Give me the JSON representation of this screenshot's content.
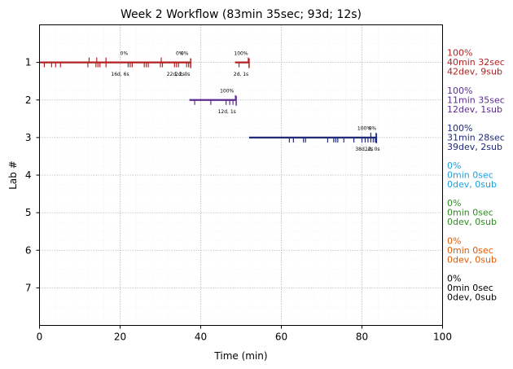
{
  "chart_data": {
    "type": "timeline",
    "title": "Week 2 Workflow (83min 35sec; 93d; 12s)",
    "xlabel": "Time (min)",
    "ylabel": "Lab #",
    "xlim": [
      0,
      100
    ],
    "ylim": [
      0,
      8
    ],
    "y_inverted": true,
    "x_ticks": [
      "0",
      "20",
      "40",
      "60",
      "80",
      "100"
    ],
    "y_ticks": [
      "1",
      "2",
      "3",
      "4",
      "5",
      "6",
      "7"
    ],
    "grid": true,
    "labs": [
      {
        "lab": 1,
        "color": "#b22222",
        "segments": [
          [
            0,
            37.5
          ],
          [
            48.5,
            52
          ]
        ],
        "dev_marks": [
          1.2,
          3,
          4,
          5.2,
          12,
          14,
          14.5,
          15,
          16.5,
          22,
          22.5,
          23,
          26,
          26.5,
          27,
          30,
          30.5,
          33.5,
          34,
          34.5,
          36.5,
          37,
          49.5
        ],
        "sub_marks": [
          12.3,
          14.2,
          16.5,
          30.2,
          51.8
        ],
        "annotations": [
          {
            "x": 21,
            "y": 0.8,
            "text": "0%"
          },
          {
            "x": 34.8,
            "y": 0.8,
            "text": "0%"
          },
          {
            "x": 36,
            "y": 0.8,
            "text": "0%"
          },
          {
            "x": 50,
            "y": 0.8,
            "text": "100%"
          },
          {
            "x": 20,
            "y": 1.35,
            "text": "16d, 6s"
          },
          {
            "x": 33.8,
            "y": 1.35,
            "text": "22d, 2s"
          },
          {
            "x": 35.5,
            "y": 1.35,
            "text": "2d, 0s"
          },
          {
            "x": 50,
            "y": 1.35,
            "text": "2d, 1s"
          }
        ],
        "side_label": [
          "100%",
          "40min 32sec",
          "42dev, 9sub"
        ]
      },
      {
        "lab": 2,
        "color": "#5c2d91",
        "segments": [
          [
            37.2,
            48.8
          ]
        ],
        "dev_marks": [
          38.5,
          42.5,
          46.3,
          47.2,
          48
        ],
        "sub_marks": [
          48.6
        ],
        "annotations": [
          {
            "x": 46.5,
            "y": 1.8,
            "text": "100%"
          },
          {
            "x": 46.5,
            "y": 2.35,
            "text": "12d, 1s"
          }
        ],
        "side_label": [
          "100%",
          "11min 35sec",
          "12dev, 1sub"
        ]
      },
      {
        "lab": 3,
        "color": "#1f2a7a",
        "segments": [
          [
            52,
            83.6
          ]
        ],
        "dev_marks": [
          62,
          63,
          65.5,
          66,
          71.5,
          73,
          73.5,
          74,
          75.5,
          78,
          80,
          80.8,
          81.5,
          82.2,
          82.8,
          83.3
        ],
        "sub_marks": [
          82.2,
          83.5
        ],
        "annotations": [
          {
            "x": 80.6,
            "y": 2.8,
            "text": "100%"
          },
          {
            "x": 82.6,
            "y": 2.8,
            "text": "0%"
          },
          {
            "x": 80.6,
            "y": 3.35,
            "text": "38d, 2s"
          },
          {
            "x": 82.6,
            "y": 3.35,
            "text": "1d, 0s"
          }
        ],
        "side_label": [
          "100%",
          "31min 28sec",
          "39dev, 2sub"
        ]
      },
      {
        "lab": 4,
        "color": "#1ca0e0",
        "segments": [],
        "dev_marks": [],
        "sub_marks": [],
        "annotations": [],
        "side_label": [
          "0%",
          "0min 0sec",
          "0dev, 0sub"
        ]
      },
      {
        "lab": 5,
        "color": "#2e8b22",
        "segments": [],
        "dev_marks": [],
        "sub_marks": [],
        "annotations": [],
        "side_label": [
          "0%",
          "0min 0sec",
          "0dev, 0sub"
        ]
      },
      {
        "lab": 6,
        "color": "#e05a00",
        "segments": [],
        "dev_marks": [],
        "sub_marks": [],
        "annotations": [],
        "side_label": [
          "0%",
          "0min 0sec",
          "0dev, 0sub"
        ]
      },
      {
        "lab": 7,
        "color": "#000000",
        "segments": [],
        "dev_marks": [],
        "sub_marks": [],
        "annotations": [],
        "side_label": [
          "0%",
          "0min 0sec",
          "0dev, 0sub"
        ]
      }
    ]
  }
}
